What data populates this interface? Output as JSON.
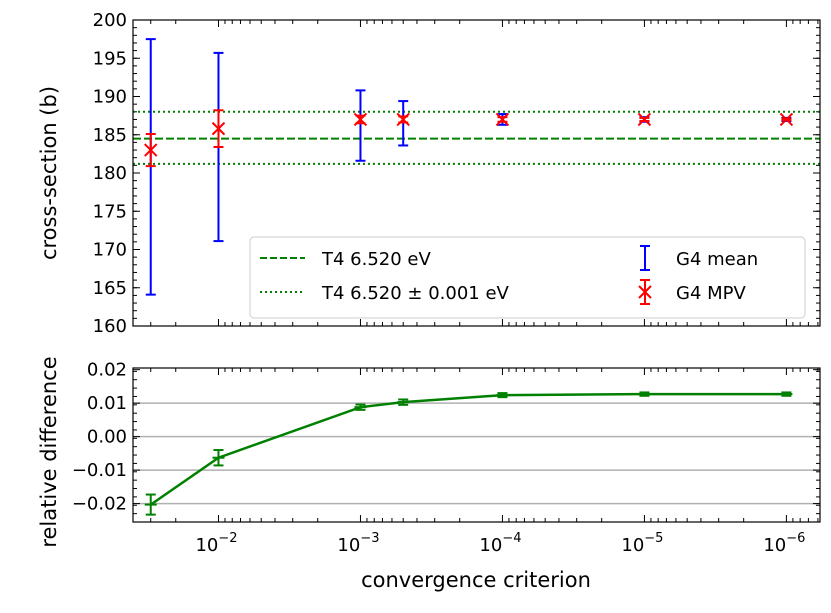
{
  "chart_data": [
    {
      "type": "scatter",
      "panel": "top",
      "ylabel": "cross-section (b)",
      "xscale": "log",
      "x_reversed": true,
      "xlim": [
        0.04,
        5.8e-07
      ],
      "ylim": [
        160,
        200
      ],
      "yticks": [
        160,
        165,
        170,
        175,
        180,
        185,
        190,
        195,
        200
      ],
      "x": [
        0.03,
        0.01,
        0.001,
        0.0005,
        0.0001,
        1e-05,
        1e-06
      ],
      "series": [
        {
          "name": "G4 mean",
          "color": "#0000ff",
          "marker": "errorbar",
          "values": [
            180.8,
            183.4,
            186.2,
            186.5,
            187.0,
            187.0,
            187.0
          ],
          "errors": [
            16.7,
            12.3,
            4.6,
            2.9,
            0.7,
            0.3,
            0.2
          ]
        },
        {
          "name": "G4 MPV",
          "color": "#ff0000",
          "marker": "x",
          "values": [
            183.0,
            185.8,
            187.0,
            187.0,
            187.0,
            187.0,
            187.0
          ],
          "errors": [
            2.1,
            2.4,
            0.5,
            0.4,
            0.3,
            0.2,
            0.1
          ]
        }
      ],
      "hlines": [
        {
          "name": "T4 6.520 eV",
          "value": 184.5,
          "style": "dashed",
          "color": "#008000"
        },
        {
          "name": "T4 6.520 ± 0.001 eV",
          "value": 188.0,
          "style": "dotted",
          "color": "#008000"
        },
        {
          "value": 181.2,
          "style": "dotted",
          "color": "#008000"
        }
      ],
      "legend": "lower-right",
      "grid": false
    },
    {
      "type": "line",
      "panel": "bottom",
      "xlabel": "convergence criterion",
      "ylabel": "relative difference",
      "xscale": "log",
      "x_reversed": true,
      "xlim": [
        0.04,
        5.8e-07
      ],
      "ylim": [
        -0.0255,
        0.0205
      ],
      "yticks": [
        "−0.02",
        "−0.01",
        "0.00",
        "0.01",
        "0.02"
      ],
      "ytick_values": [
        -0.02,
        -0.01,
        0.0,
        0.01,
        0.02
      ],
      "xticks": [
        0.01,
        0.001,
        0.0001,
        1e-05,
        1e-06
      ],
      "xtick_labels": [
        [
          "10",
          "−2"
        ],
        [
          "10",
          "−3"
        ],
        [
          "10",
          "−4"
        ],
        [
          "10",
          "−5"
        ],
        [
          "10",
          "−6"
        ]
      ],
      "x": [
        0.03,
        0.01,
        0.001,
        0.0005,
        0.0001,
        1e-05,
        1e-06
      ],
      "values": [
        -0.0203,
        -0.0063,
        0.0088,
        0.0103,
        0.0124,
        0.0127,
        0.0127
      ],
      "errors": [
        0.003,
        0.0023,
        0.0008,
        0.0008,
        0.0006,
        0.0005,
        0.0005
      ],
      "color": "#008000",
      "grid": "y"
    }
  ]
}
